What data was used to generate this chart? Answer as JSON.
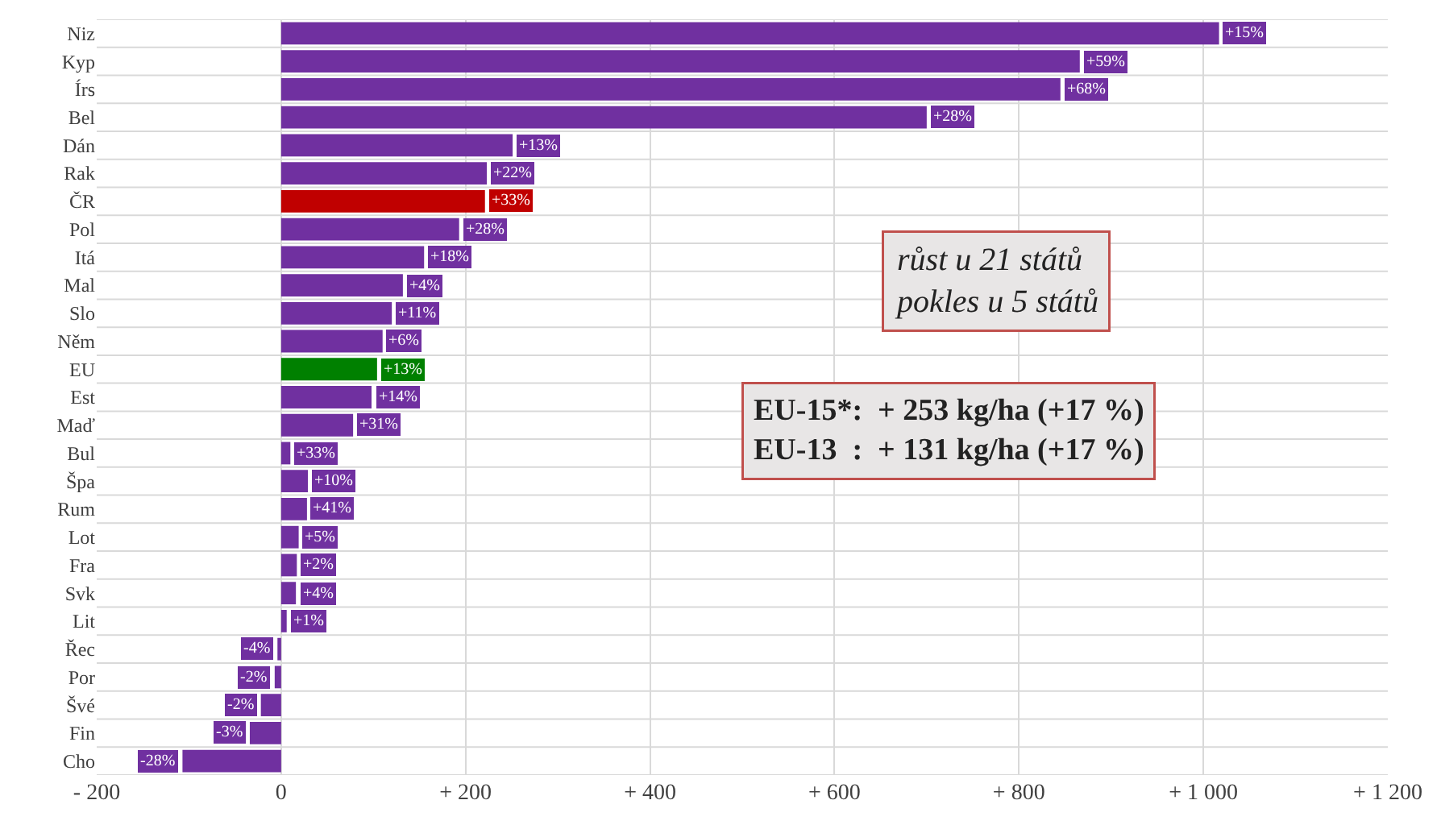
{
  "chart_data": {
    "type": "bar",
    "orientation": "horizontal",
    "categories": [
      "Niz",
      "Kyp",
      "Írs",
      "Bel",
      "Dán",
      "Rak",
      "ČR",
      "Pol",
      "Itá",
      "Mal",
      "Slo",
      "Něm",
      "EU",
      "Est",
      "Maď",
      "Bul",
      "Špa",
      "Rum",
      "Lot",
      "Fra",
      "Svk",
      "Lit",
      "Řec",
      "Por",
      "Švé",
      "Fin",
      "Cho"
    ],
    "values": [
      1017,
      866,
      845,
      700,
      251,
      223,
      221,
      193,
      155,
      132,
      120,
      110,
      104,
      98,
      78,
      10,
      29,
      28,
      19,
      17,
      16,
      6,
      -4,
      -7,
      -22,
      -34,
      -107
    ],
    "colors": [
      "#7030a0",
      "#7030a0",
      "#7030a0",
      "#7030a0",
      "#7030a0",
      "#7030a0",
      "#c00000",
      "#7030a0",
      "#7030a0",
      "#7030a0",
      "#7030a0",
      "#7030a0",
      "#008000",
      "#7030a0",
      "#7030a0",
      "#7030a0",
      "#7030a0",
      "#7030a0",
      "#7030a0",
      "#7030a0",
      "#7030a0",
      "#7030a0",
      "#7030a0",
      "#7030a0",
      "#7030a0",
      "#7030a0",
      "#7030a0"
    ],
    "xlim": [
      -200,
      1200
    ],
    "xticks": [
      {
        "value": -200,
        "label": "- 200"
      },
      0,
      {
        "value": 200,
        "label": "+ 200"
      },
      {
        "value": 400,
        "label": "+ 400"
      },
      {
        "value": 600,
        "label": "+ 600"
      },
      {
        "value": 800,
        "label": "+ 800"
      },
      {
        "value": 1000,
        "label": "+ 1 000"
      },
      {
        "value": 1200,
        "label": "+ 1 200"
      }
    ],
    "grid": true,
    "annotations": [
      "růst u 21 států\npokles u 5 států",
      "EU-15*:  + 253 kg/ha (+17 %)\nEU-13  :  + 131 kg/ha (+17 %)",
      {
        "text": "+15%",
        "x": 1017,
        "y": "Niz"
      },
      {
        "text": "+59%",
        "x": 866,
        "y": "Kyp"
      },
      {
        "text": "+68%",
        "x": 845,
        "y": "Írs"
      },
      {
        "text": "+28%",
        "x": 700,
        "y": "Bel"
      },
      {
        "text": "+13%",
        "x": 251,
        "y": "Dán"
      },
      {
        "text": "+22%",
        "x": 223,
        "y": "Rak"
      },
      {
        "text": "+33%",
        "x": 221,
        "y": "ČR"
      },
      {
        "text": "+28%",
        "x": 193,
        "y": "Pol"
      },
      {
        "text": "+18%",
        "x": 155,
        "y": "Itá"
      },
      {
        "text": "+4%",
        "x": 132,
        "y": "Mal"
      },
      {
        "text": "+11%",
        "x": 120,
        "y": "Slo"
      },
      {
        "text": "+6%",
        "x": 110,
        "y": "Něm"
      },
      {
        "text": "+13%",
        "x": 104,
        "y": "EU"
      },
      {
        "text": "+14%",
        "x": 98,
        "y": "Est"
      },
      {
        "text": "+31%",
        "x": 78,
        "y": "Maď"
      },
      {
        "text": "+33%",
        "x": 10,
        "y": "Bul"
      },
      {
        "text": "+10%",
        "x": 29,
        "y": "Špa"
      },
      {
        "text": "+41%",
        "x": 28,
        "y": "Rum"
      },
      {
        "text": "+5%",
        "x": 19,
        "y": "Lot"
      },
      {
        "text": "+2%",
        "x": 17,
        "y": "Fra"
      },
      {
        "text": "+4%",
        "x": 16,
        "y": "Svk"
      },
      {
        "text": "+1%",
        "x": 6,
        "y": "Lit"
      },
      {
        "text": "-4%",
        "x": -4,
        "y": "Řec"
      },
      {
        "text": "-2%",
        "x": -7,
        "y": "Por"
      },
      {
        "text": "-2%",
        "x": -22,
        "y": "Švé"
      },
      {
        "text": "-3%",
        "x": -34,
        "y": "Fin"
      },
      {
        "text": "-28%",
        "x": -107,
        "y": "Cho"
      }
    ]
  }
}
